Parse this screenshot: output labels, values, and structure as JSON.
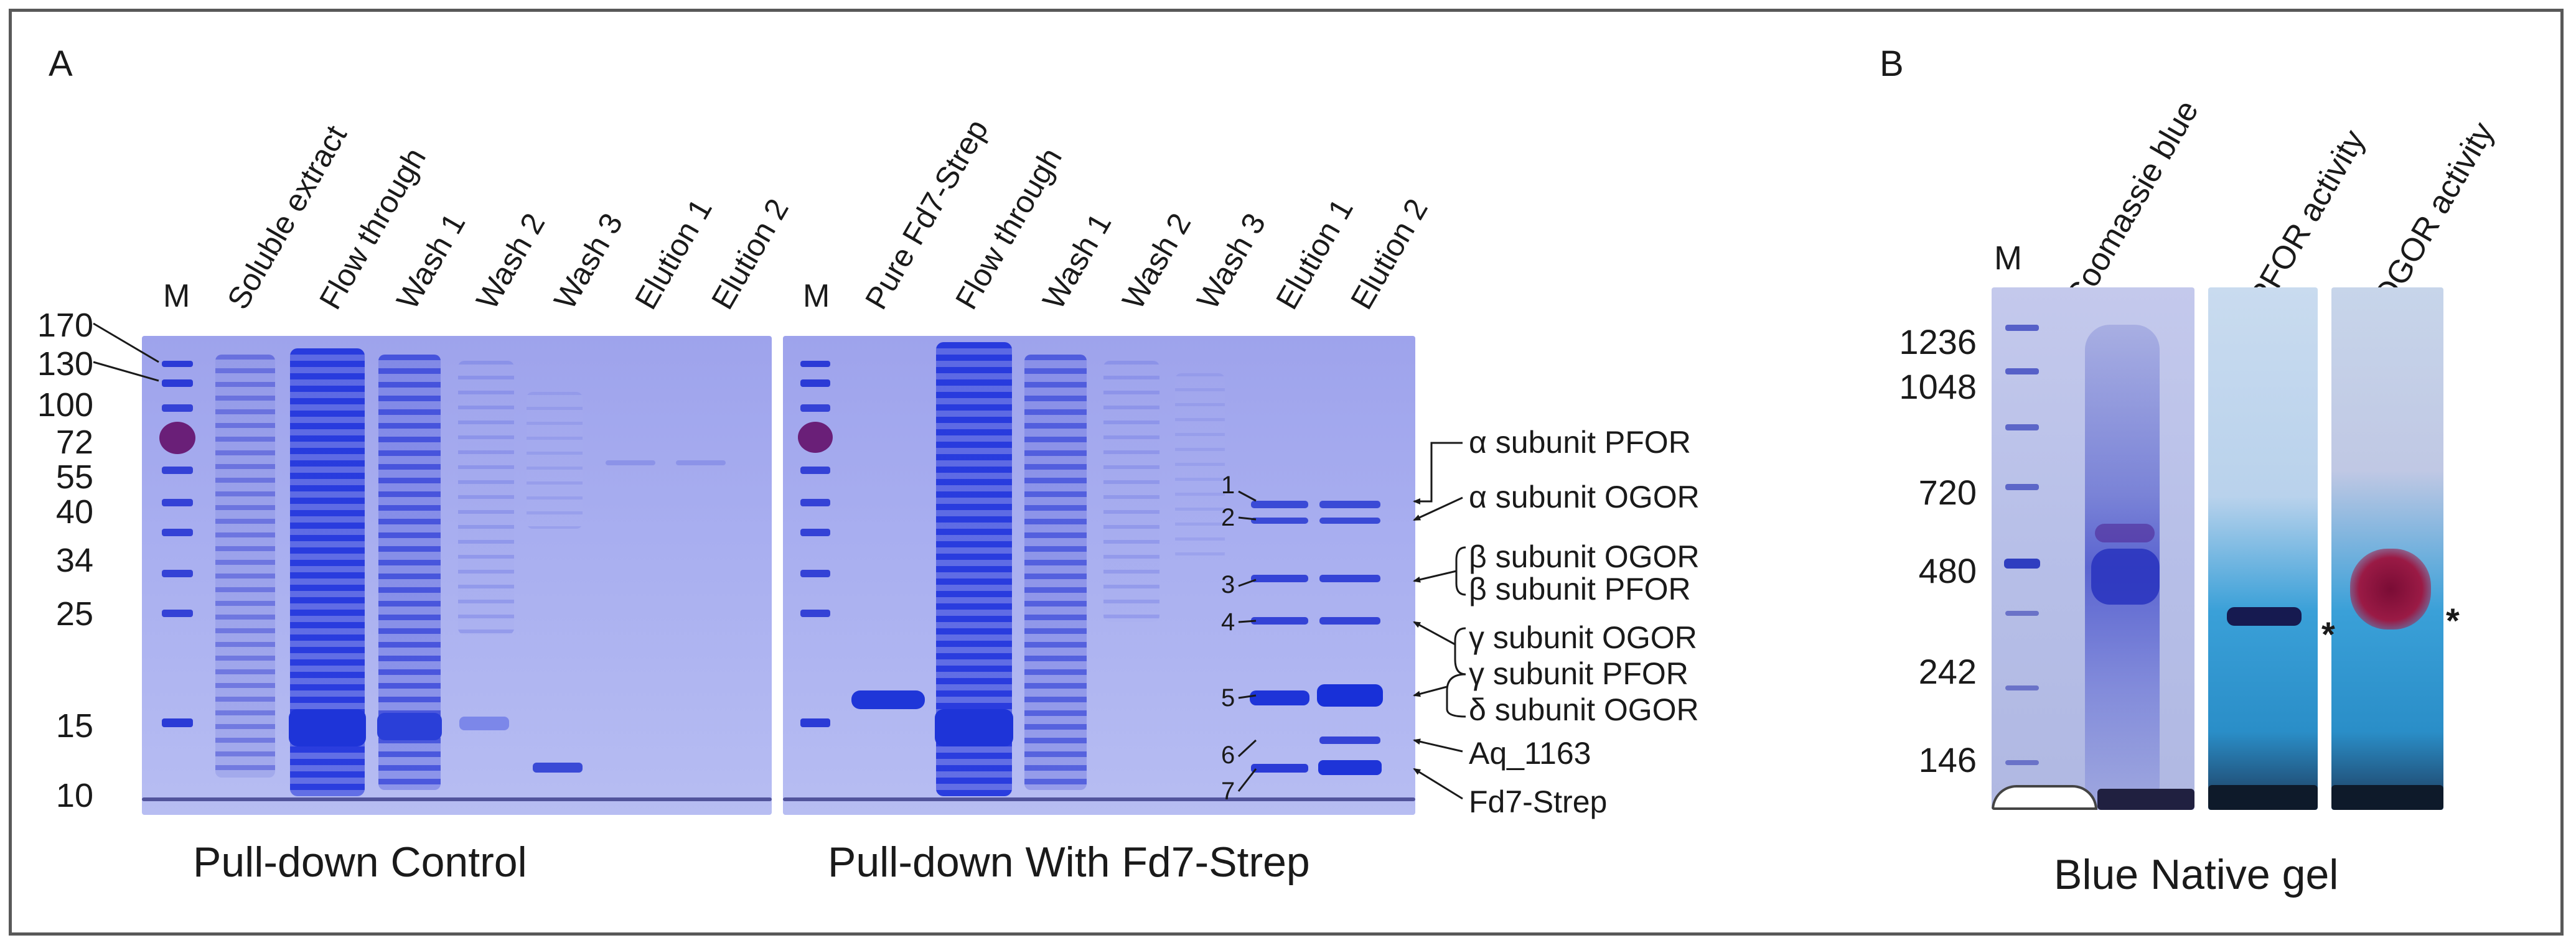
{
  "panel_a": {
    "letter": "A",
    "marker_label": "M",
    "mw_markers": [
      "170",
      "130",
      "100",
      "72",
      "55",
      "40",
      "34",
      "25",
      "15",
      "10"
    ],
    "control": {
      "lanes": [
        "Soluble extract",
        "Flow through",
        "Wash 1",
        "Wash 2",
        "Wash 3",
        "Elution 1",
        "Elution 2"
      ],
      "caption": "Pull-down Control"
    },
    "fd7": {
      "lanes": [
        "Pure Fd7-Strep",
        "Flow through",
        "Wash 1",
        "Wash 2",
        "Wash 3",
        "Elution 1",
        "Elution 2"
      ],
      "caption": "Pull-down With Fd7-Strep",
      "band_numbers": [
        "1",
        "2",
        "3",
        "4",
        "5",
        "6",
        "7"
      ],
      "band_labels": [
        "α subunit PFOR",
        "α subunit OGOR",
        "β subunit OGOR",
        "β subunit PFOR",
        "γ subunit OGOR",
        "γ subunit PFOR",
        "δ subunit OGOR",
        "Aq_1163",
        "Fd7-Strep"
      ]
    }
  },
  "panel_b": {
    "letter": "B",
    "marker_label": "M",
    "lanes": [
      "Coomassie blue",
      "PFOR activity",
      "OGOR activity"
    ],
    "mw_markers": [
      "1236",
      "1048",
      "720",
      "480",
      "242",
      "146"
    ],
    "asterisk": "*",
    "caption": "Blue Native gel"
  },
  "colors": {
    "gel_background": "#a9aff0",
    "band_blue": "#2b3bd6",
    "marker_magenta": "#7a2a8a",
    "activity_red": "#8a0f3c",
    "activity_blue": "#3aa0d8",
    "frame": "#595959"
  }
}
